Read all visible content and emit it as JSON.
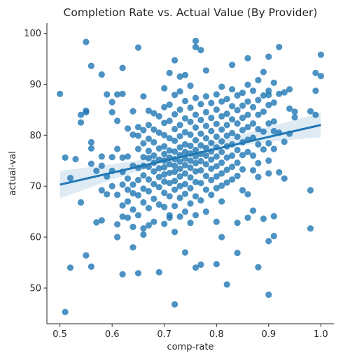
{
  "chart_data": {
    "type": "scatter",
    "title": "Completion Rate vs. Actual Value (By Provider)",
    "xlabel": "comp-rate",
    "ylabel": "actual-val",
    "xlim": [
      0.475,
      1.025
    ],
    "ylim": [
      43,
      102
    ],
    "xticks": [
      0.5,
      0.6,
      0.7,
      0.8,
      0.9,
      1.0
    ],
    "xtick_labels": [
      "0.5",
      "0.6",
      "0.7",
      "0.8",
      "0.9",
      "1.0"
    ],
    "yticks": [
      50,
      60,
      70,
      80,
      90,
      100
    ],
    "ytick_labels": [
      "50",
      "60",
      "70",
      "80",
      "90",
      "100"
    ],
    "grid": false,
    "legend": "none",
    "point_color": "#1f77b4",
    "regression": {
      "start": [
        0.5,
        70.3
      ],
      "end": [
        1.0,
        82.0
      ],
      "ci_lower": [
        [
          0.5,
          67.6
        ],
        [
          0.6,
          71.3
        ],
        [
          0.7,
          74.5
        ],
        [
          0.75,
          76.0
        ],
        [
          0.8,
          77.3
        ],
        [
          0.9,
          78.7
        ],
        [
          1.0,
          79.6
        ]
      ],
      "ci_upper": [
        [
          0.5,
          73.0
        ],
        [
          0.6,
          74.3
        ],
        [
          0.7,
          75.8
        ],
        [
          0.75,
          77.1
        ],
        [
          0.8,
          78.8
        ],
        [
          0.9,
          81.6
        ],
        [
          1.0,
          84.4
        ]
      ],
      "color": "#1f77b4",
      "band_color": "#1f77b4"
    },
    "points": [
      [
        0.5,
        88.1
      ],
      [
        0.51,
        45.3
      ],
      [
        0.51,
        75.6
      ],
      [
        0.52,
        54.0
      ],
      [
        0.52,
        71.6
      ],
      [
        0.53,
        75.3
      ],
      [
        0.54,
        66.8
      ],
      [
        0.54,
        84.0
      ],
      [
        0.54,
        82.5
      ],
      [
        0.55,
        98.3
      ],
      [
        0.55,
        56.4
      ],
      [
        0.55,
        84.5
      ],
      [
        0.55,
        84.8
      ],
      [
        0.56,
        93.6
      ],
      [
        0.56,
        78.6
      ],
      [
        0.56,
        77.4
      ],
      [
        0.56,
        54.2
      ],
      [
        0.56,
        74.4
      ],
      [
        0.57,
        62.9
      ],
      [
        0.57,
        73.0
      ],
      [
        0.58,
        91.9
      ],
      [
        0.58,
        75.8
      ],
      [
        0.58,
        74.0
      ],
      [
        0.58,
        69.2
      ],
      [
        0.58,
        63.3
      ],
      [
        0.59,
        88.0
      ],
      [
        0.59,
        71.9
      ],
      [
        0.59,
        68.4
      ],
      [
        0.6,
        84.5
      ],
      [
        0.6,
        86.5
      ],
      [
        0.6,
        75.7
      ],
      [
        0.6,
        73.0
      ],
      [
        0.6,
        70.0
      ],
      [
        0.61,
        88.0
      ],
      [
        0.61,
        82.8
      ],
      [
        0.61,
        77.3
      ],
      [
        0.61,
        68.3
      ],
      [
        0.61,
        62.5
      ],
      [
        0.61,
        60.0
      ],
      [
        0.62,
        93.2
      ],
      [
        0.62,
        88.1
      ],
      [
        0.62,
        75.6
      ],
      [
        0.62,
        72.8
      ],
      [
        0.62,
        70.3
      ],
      [
        0.62,
        66.2
      ],
      [
        0.62,
        64.0
      ],
      [
        0.62,
        52.7
      ],
      [
        0.63,
        81.3
      ],
      [
        0.63,
        75.8
      ],
      [
        0.63,
        71.5
      ],
      [
        0.63,
        69.3
      ],
      [
        0.63,
        67.0
      ],
      [
        0.63,
        63.8
      ],
      [
        0.64,
        84.7
      ],
      [
        0.64,
        80.1
      ],
      [
        0.64,
        74.0
      ],
      [
        0.64,
        70.3
      ],
      [
        0.64,
        68.6
      ],
      [
        0.64,
        65.4
      ],
      [
        0.64,
        62.0
      ],
      [
        0.64,
        58.0
      ],
      [
        0.65,
        97.2
      ],
      [
        0.65,
        81.6
      ],
      [
        0.65,
        79.9
      ],
      [
        0.65,
        77.3
      ],
      [
        0.65,
        73.6
      ],
      [
        0.65,
        71.2
      ],
      [
        0.65,
        68.2
      ],
      [
        0.65,
        64.3
      ],
      [
        0.65,
        52.9
      ],
      [
        0.66,
        87.6
      ],
      [
        0.66,
        81.0
      ],
      [
        0.66,
        78.4
      ],
      [
        0.66,
        75.7
      ],
      [
        0.66,
        74.0
      ],
      [
        0.66,
        72.1
      ],
      [
        0.66,
        69.5
      ],
      [
        0.66,
        66.8
      ],
      [
        0.66,
        61.7
      ],
      [
        0.66,
        60.5
      ],
      [
        0.67,
        84.8
      ],
      [
        0.67,
        82.0
      ],
      [
        0.67,
        79.3
      ],
      [
        0.67,
        76.9
      ],
      [
        0.67,
        75.5
      ],
      [
        0.67,
        73.8
      ],
      [
        0.67,
        71.3
      ],
      [
        0.67,
        69.0
      ],
      [
        0.67,
        65.7
      ],
      [
        0.67,
        62.3
      ],
      [
        0.68,
        84.3
      ],
      [
        0.68,
        81.1
      ],
      [
        0.68,
        78.6
      ],
      [
        0.68,
        76.0
      ],
      [
        0.68,
        74.6
      ],
      [
        0.68,
        72.9
      ],
      [
        0.68,
        70.4
      ],
      [
        0.68,
        67.5
      ],
      [
        0.68,
        63.0
      ],
      [
        0.69,
        83.7
      ],
      [
        0.69,
        80.5
      ],
      [
        0.69,
        77.4
      ],
      [
        0.69,
        75.2
      ],
      [
        0.69,
        73.5
      ],
      [
        0.69,
        71.8
      ],
      [
        0.69,
        69.8
      ],
      [
        0.69,
        66.4
      ],
      [
        0.69,
        53.1
      ],
      [
        0.7,
        89.2
      ],
      [
        0.7,
        85.5
      ],
      [
        0.7,
        82.4
      ],
      [
        0.7,
        80.0
      ],
      [
        0.7,
        77.8
      ],
      [
        0.7,
        76.3
      ],
      [
        0.7,
        75.0
      ],
      [
        0.7,
        73.7
      ],
      [
        0.7,
        72.3
      ],
      [
        0.7,
        70.9
      ],
      [
        0.7,
        68.7
      ],
      [
        0.7,
        65.9
      ],
      [
        0.7,
        62.6
      ],
      [
        0.71,
        92.2
      ],
      [
        0.71,
        86.0
      ],
      [
        0.71,
        82.8
      ],
      [
        0.71,
        79.4
      ],
      [
        0.71,
        77.0
      ],
      [
        0.71,
        75.6
      ],
      [
        0.71,
        74.3
      ],
      [
        0.71,
        72.6
      ],
      [
        0.71,
        70.6
      ],
      [
        0.71,
        68.0
      ],
      [
        0.71,
        64.3
      ],
      [
        0.71,
        63.8
      ],
      [
        0.72,
        94.7
      ],
      [
        0.72,
        87.9
      ],
      [
        0.72,
        84.1
      ],
      [
        0.72,
        81.2
      ],
      [
        0.72,
        78.9
      ],
      [
        0.72,
        76.8
      ],
      [
        0.72,
        75.3
      ],
      [
        0.72,
        74.0
      ],
      [
        0.72,
        72.8
      ],
      [
        0.72,
        71.0
      ],
      [
        0.72,
        69.3
      ],
      [
        0.72,
        66.1
      ],
      [
        0.72,
        61.0
      ],
      [
        0.72,
        46.8
      ],
      [
        0.73,
        91.5
      ],
      [
        0.73,
        88.6
      ],
      [
        0.73,
        85.0
      ],
      [
        0.73,
        82.0
      ],
      [
        0.73,
        79.8
      ],
      [
        0.73,
        77.6
      ],
      [
        0.73,
        76.1
      ],
      [
        0.73,
        74.8
      ],
      [
        0.73,
        73.4
      ],
      [
        0.73,
        71.9
      ],
      [
        0.73,
        70.0
      ],
      [
        0.73,
        67.7
      ],
      [
        0.73,
        64.0
      ],
      [
        0.74,
        91.8
      ],
      [
        0.74,
        86.7
      ],
      [
        0.74,
        83.3
      ],
      [
        0.74,
        80.6
      ],
      [
        0.74,
        78.2
      ],
      [
        0.74,
        76.7
      ],
      [
        0.74,
        75.4
      ],
      [
        0.74,
        74.1
      ],
      [
        0.74,
        72.5
      ],
      [
        0.74,
        70.4
      ],
      [
        0.74,
        68.5
      ],
      [
        0.74,
        65.0
      ],
      [
        0.74,
        57.0
      ],
      [
        0.75,
        89.7
      ],
      [
        0.75,
        85.4
      ],
      [
        0.75,
        82.6
      ],
      [
        0.75,
        80.1
      ],
      [
        0.75,
        77.9
      ],
      [
        0.75,
        76.4
      ],
      [
        0.75,
        75.0
      ],
      [
        0.75,
        73.6
      ],
      [
        0.75,
        71.7
      ],
      [
        0.75,
        69.6
      ],
      [
        0.75,
        66.6
      ],
      [
        0.75,
        62.8
      ],
      [
        0.76,
        98.5
      ],
      [
        0.76,
        97.3
      ],
      [
        0.76,
        87.3
      ],
      [
        0.76,
        84.0
      ],
      [
        0.76,
        81.5
      ],
      [
        0.76,
        79.0
      ],
      [
        0.76,
        77.1
      ],
      [
        0.76,
        75.8
      ],
      [
        0.76,
        74.5
      ],
      [
        0.76,
        72.9
      ],
      [
        0.76,
        70.8
      ],
      [
        0.76,
        68.0
      ],
      [
        0.76,
        64.3
      ],
      [
        0.76,
        54.0
      ],
      [
        0.77,
        96.7
      ],
      [
        0.77,
        86.1
      ],
      [
        0.77,
        83.0
      ],
      [
        0.77,
        80.3
      ],
      [
        0.77,
        78.0
      ],
      [
        0.77,
        76.3
      ],
      [
        0.77,
        74.9
      ],
      [
        0.77,
        73.1
      ],
      [
        0.77,
        70.6
      ],
      [
        0.77,
        67.2
      ],
      [
        0.77,
        54.6
      ],
      [
        0.78,
        92.7
      ],
      [
        0.78,
        87.6
      ],
      [
        0.78,
        84.5
      ],
      [
        0.78,
        81.8
      ],
      [
        0.78,
        79.4
      ],
      [
        0.78,
        77.5
      ],
      [
        0.78,
        76.0
      ],
      [
        0.78,
        74.3
      ],
      [
        0.78,
        72.0
      ],
      [
        0.78,
        69.3
      ],
      [
        0.78,
        65.0
      ],
      [
        0.79,
        86.3
      ],
      [
        0.79,
        83.4
      ],
      [
        0.79,
        80.8
      ],
      [
        0.79,
        78.5
      ],
      [
        0.79,
        76.8
      ],
      [
        0.79,
        75.2
      ],
      [
        0.79,
        73.4
      ],
      [
        0.79,
        71.2
      ],
      [
        0.79,
        68.3
      ],
      [
        0.8,
        88.0
      ],
      [
        0.8,
        85.0
      ],
      [
        0.8,
        82.2
      ],
      [
        0.8,
        79.7
      ],
      [
        0.8,
        77.6
      ],
      [
        0.8,
        75.8
      ],
      [
        0.8,
        73.9
      ],
      [
        0.8,
        71.9
      ],
      [
        0.8,
        69.6
      ],
      [
        0.8,
        63.0
      ],
      [
        0.8,
        54.7
      ],
      [
        0.81,
        89.5
      ],
      [
        0.81,
        86.6
      ],
      [
        0.81,
        83.7
      ],
      [
        0.81,
        81.1
      ],
      [
        0.81,
        78.8
      ],
      [
        0.81,
        76.7
      ],
      [
        0.81,
        74.6
      ],
      [
        0.81,
        72.5
      ],
      [
        0.81,
        70.1
      ],
      [
        0.81,
        67.0
      ],
      [
        0.81,
        60.0
      ],
      [
        0.82,
        87.1
      ],
      [
        0.82,
        84.2
      ],
      [
        0.82,
        82.0
      ],
      [
        0.82,
        79.9
      ],
      [
        0.82,
        77.8
      ],
      [
        0.82,
        75.6
      ],
      [
        0.82,
        73.2
      ],
      [
        0.82,
        70.7
      ],
      [
        0.82,
        50.7
      ],
      [
        0.83,
        93.8
      ],
      [
        0.83,
        89.0
      ],
      [
        0.83,
        85.7
      ],
      [
        0.83,
        83.1
      ],
      [
        0.83,
        80.4
      ],
      [
        0.83,
        78.2
      ],
      [
        0.83,
        76.0
      ],
      [
        0.83,
        73.8
      ],
      [
        0.83,
        71.3
      ],
      [
        0.84,
        87.8
      ],
      [
        0.84,
        84.9
      ],
      [
        0.84,
        82.3
      ],
      [
        0.84,
        79.7
      ],
      [
        0.84,
        77.1
      ],
      [
        0.84,
        74.6
      ],
      [
        0.84,
        72.0
      ],
      [
        0.84,
        62.8
      ],
      [
        0.84,
        56.9
      ],
      [
        0.85,
        88.3
      ],
      [
        0.85,
        85.8
      ],
      [
        0.85,
        83.4
      ],
      [
        0.85,
        81.0
      ],
      [
        0.85,
        78.6
      ],
      [
        0.85,
        76.1
      ],
      [
        0.85,
        73.3
      ],
      [
        0.85,
        69.2
      ],
      [
        0.86,
        95.1
      ],
      [
        0.86,
        89.9
      ],
      [
        0.86,
        86.6
      ],
      [
        0.86,
        84.0
      ],
      [
        0.86,
        81.6
      ],
      [
        0.86,
        79.1
      ],
      [
        0.86,
        76.7
      ],
      [
        0.86,
        68.4
      ],
      [
        0.86,
        63.8
      ],
      [
        0.87,
        88.7
      ],
      [
        0.87,
        85.5
      ],
      [
        0.87,
        82.3
      ],
      [
        0.87,
        79.5
      ],
      [
        0.87,
        76.0
      ],
      [
        0.87,
        73.1
      ],
      [
        0.87,
        65.2
      ],
      [
        0.88,
        90.8
      ],
      [
        0.88,
        86.9
      ],
      [
        0.88,
        84.0
      ],
      [
        0.88,
        81.2
      ],
      [
        0.88,
        78.2
      ],
      [
        0.88,
        74.5
      ],
      [
        0.88,
        71.8
      ],
      [
        0.88,
        54.1
      ],
      [
        0.89,
        92.4
      ],
      [
        0.89,
        87.8
      ],
      [
        0.89,
        84.6
      ],
      [
        0.89,
        80.7
      ],
      [
        0.89,
        77.2
      ],
      [
        0.89,
        63.6
      ],
      [
        0.9,
        95.4
      ],
      [
        0.9,
        88.7
      ],
      [
        0.9,
        87.9
      ],
      [
        0.9,
        85.9
      ],
      [
        0.9,
        82.3
      ],
      [
        0.9,
        78.4
      ],
      [
        0.9,
        75.0
      ],
      [
        0.9,
        72.5
      ],
      [
        0.9,
        59.2
      ],
      [
        0.9,
        48.7
      ],
      [
        0.91,
        90.3
      ],
      [
        0.91,
        86.4
      ],
      [
        0.91,
        82.7
      ],
      [
        0.91,
        80.8
      ],
      [
        0.91,
        77.3
      ],
      [
        0.91,
        64.1
      ],
      [
        0.91,
        60.2
      ],
      [
        0.92,
        97.3
      ],
      [
        0.92,
        88.1
      ],
      [
        0.92,
        80.5
      ],
      [
        0.92,
        72.7
      ],
      [
        0.93,
        88.4
      ],
      [
        0.93,
        78.7
      ],
      [
        0.93,
        71.5
      ],
      [
        0.94,
        89.0
      ],
      [
        0.94,
        85.2
      ],
      [
        0.94,
        80.3
      ],
      [
        0.95,
        84.6
      ],
      [
        0.95,
        83.5
      ],
      [
        0.98,
        84.7
      ],
      [
        0.98,
        69.2
      ],
      [
        0.98,
        61.7
      ],
      [
        0.99,
        92.2
      ],
      [
        0.99,
        88.7
      ],
      [
        0.99,
        84.0
      ],
      [
        1.0,
        95.8
      ],
      [
        1.0,
        91.6
      ]
    ]
  }
}
